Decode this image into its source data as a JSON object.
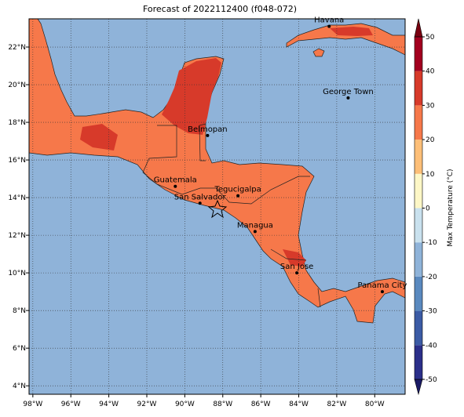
{
  "header": {
    "title": "Forecast of 2022112400 (f048-072)"
  },
  "map": {
    "xlim": [
      -98.2,
      -78.4
    ],
    "ylim": [
      3.55,
      23.5
    ],
    "grid": true,
    "sea_color": "#8fb3d9",
    "land_color": "#f6784a",
    "hot_color": "#d73a2a",
    "xticks": [
      {
        "value": -98,
        "label": "98°W"
      },
      {
        "value": -96,
        "label": "96°W"
      },
      {
        "value": -94,
        "label": "94°W"
      },
      {
        "value": -92,
        "label": "92°W"
      },
      {
        "value": -90,
        "label": "90°W"
      },
      {
        "value": -88,
        "label": "88°W"
      },
      {
        "value": -86,
        "label": "86°W"
      },
      {
        "value": -84,
        "label": "84°W"
      },
      {
        "value": -82,
        "label": "82°W"
      },
      {
        "value": -80,
        "label": "80°W"
      }
    ],
    "yticks": [
      {
        "value": 4,
        "label": "4°N"
      },
      {
        "value": 6,
        "label": "6°N"
      },
      {
        "value": 8,
        "label": "8°N"
      },
      {
        "value": 10,
        "label": "10°N"
      },
      {
        "value": 12,
        "label": "12°N"
      },
      {
        "value": 14,
        "label": "14°N"
      },
      {
        "value": 16,
        "label": "16°N"
      },
      {
        "value": 18,
        "label": "18°N"
      },
      {
        "value": 20,
        "label": "20°N"
      },
      {
        "value": 22,
        "label": "22°N"
      }
    ],
    "cities": [
      {
        "name": "Havana",
        "lon": -82.4,
        "lat": 23.1
      },
      {
        "name": "George Town",
        "lon": -81.4,
        "lat": 19.3
      },
      {
        "name": "Belmopan",
        "lon": -88.8,
        "lat": 17.3
      },
      {
        "name": "Guatemala",
        "lon": -90.5,
        "lat": 14.6
      },
      {
        "name": "San Salvador",
        "lon": -89.2,
        "lat": 13.7
      },
      {
        "name": "Tegucigalpa",
        "lon": -87.2,
        "lat": 14.1
      },
      {
        "name": "Managua",
        "lon": -86.3,
        "lat": 12.2
      },
      {
        "name": "San Jose",
        "lon": -84.1,
        "lat": 10.0
      },
      {
        "name": "Panama City",
        "lon": -79.6,
        "lat": 9.0
      }
    ]
  },
  "colorbar": {
    "label": "Max Temperature (°C)",
    "lim": [
      -50,
      50
    ],
    "ticks": [
      -50,
      -40,
      -30,
      -20,
      -10,
      0,
      10,
      20,
      30,
      40,
      50
    ],
    "colors": [
      "#2b2f8a",
      "#3b5ba5",
      "#5a89bf",
      "#8fb3d9",
      "#c9e1ee",
      "#fdf7c6",
      "#fdbf78",
      "#f6784a",
      "#d73a2a",
      "#a3001f"
    ],
    "under_color": "#1a1a66",
    "over_color": "#7a0010"
  }
}
